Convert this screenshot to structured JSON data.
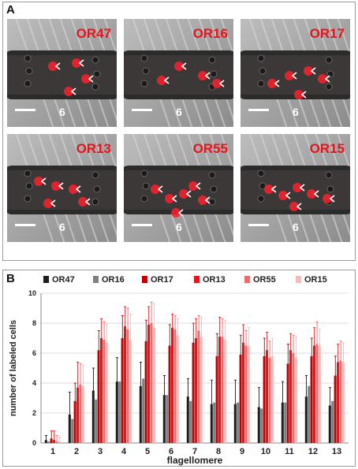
{
  "panel_a": {
    "letter": "A",
    "tiles": [
      {
        "label": "OR47",
        "segment": "6"
      },
      {
        "label": "OR16",
        "segment": "6"
      },
      {
        "label": "OR17",
        "segment": "6"
      },
      {
        "label": "OR13",
        "segment": "6"
      },
      {
        "label": "OR55",
        "segment": "6"
      },
      {
        "label": "OR15",
        "segment": "6"
      }
    ]
  },
  "panel_b": {
    "letter": "B"
  },
  "chart_data": {
    "type": "bar",
    "title": "",
    "xlabel": "flagellomere",
    "ylabel": "number of labeled cells",
    "ylim": [
      0,
      10
    ],
    "yticks": [
      0,
      2,
      4,
      6,
      8,
      10
    ],
    "grid": true,
    "legend_position": "top",
    "error_bars": true,
    "categories": [
      "1",
      "2",
      "3",
      "4",
      "5",
      "6",
      "7",
      "8",
      "9",
      "10",
      "11",
      "12",
      "13"
    ],
    "series": [
      {
        "name": "OR47",
        "color": "#1e1e1e",
        "values": [
          0.2,
          1.9,
          3.5,
          4.1,
          3.8,
          3.2,
          3.1,
          2.6,
          2.6,
          2.4,
          2.7,
          3.1,
          2.5
        ],
        "errors": [
          0.3,
          1.5,
          1.5,
          1.6,
          1.6,
          1.3,
          1.2,
          1.6,
          1.6,
          1.3,
          1.4,
          1.4,
          1.2
        ]
      },
      {
        "name": "OR16",
        "color": "#808080",
        "values": [
          0.1,
          1.6,
          2.9,
          4.1,
          4.3,
          3.2,
          2.8,
          2.7,
          2.7,
          2.3,
          2.7,
          3.8,
          2.8
        ]
      },
      {
        "name": "OR17",
        "color": "#c00000",
        "values": [
          0.3,
          2.8,
          6.2,
          7.0,
          6.8,
          6.5,
          6.7,
          5.8,
          5.9,
          5.8,
          5.3,
          5.8,
          4.5
        ],
        "errors": [
          0.5,
          1.2,
          1.3,
          1.5,
          1.4,
          1.4,
          1.3,
          1.5,
          1.3,
          1.2,
          1.3,
          1.2,
          1.3
        ]
      },
      {
        "name": "OR13",
        "color": "#e8141c",
        "values": [
          0.2,
          3.7,
          7.0,
          7.8,
          7.9,
          7.7,
          7.0,
          7.1,
          6.7,
          6.2,
          6.2,
          6.5,
          5.4
        ],
        "errors": [
          0.6,
          1.7,
          1.3,
          1.3,
          1.2,
          0.9,
          1.3,
          1.3,
          1.2,
          1.2,
          1.1,
          1.2,
          1.2
        ]
      },
      {
        "name": "OR55",
        "color": "#f06a6a",
        "values": [
          0.1,
          3.9,
          6.9,
          7.6,
          8.0,
          7.6,
          7.5,
          7.1,
          6.5,
          5.7,
          6.0,
          6.6,
          5.5
        ],
        "errors": [
          0.4,
          1.4,
          1.2,
          1.4,
          1.4,
          0.9,
          1.0,
          1.2,
          1.0,
          1.1,
          1.2,
          1.5,
          1.3
        ]
      },
      {
        "name": "OR15",
        "color": "#f9b9b9",
        "values": [
          0.1,
          3.8,
          6.7,
          6.9,
          7.7,
          7.2,
          7.1,
          6.9,
          6.5,
          5.8,
          5.7,
          6.5,
          5.4
        ],
        "errors": [
          0.3,
          1.4,
          1.3,
          1.7,
          1.6,
          1.1,
          1.3,
          1.3,
          1.2,
          1.2,
          1.4,
          1.1,
          1.3
        ]
      }
    ]
  }
}
